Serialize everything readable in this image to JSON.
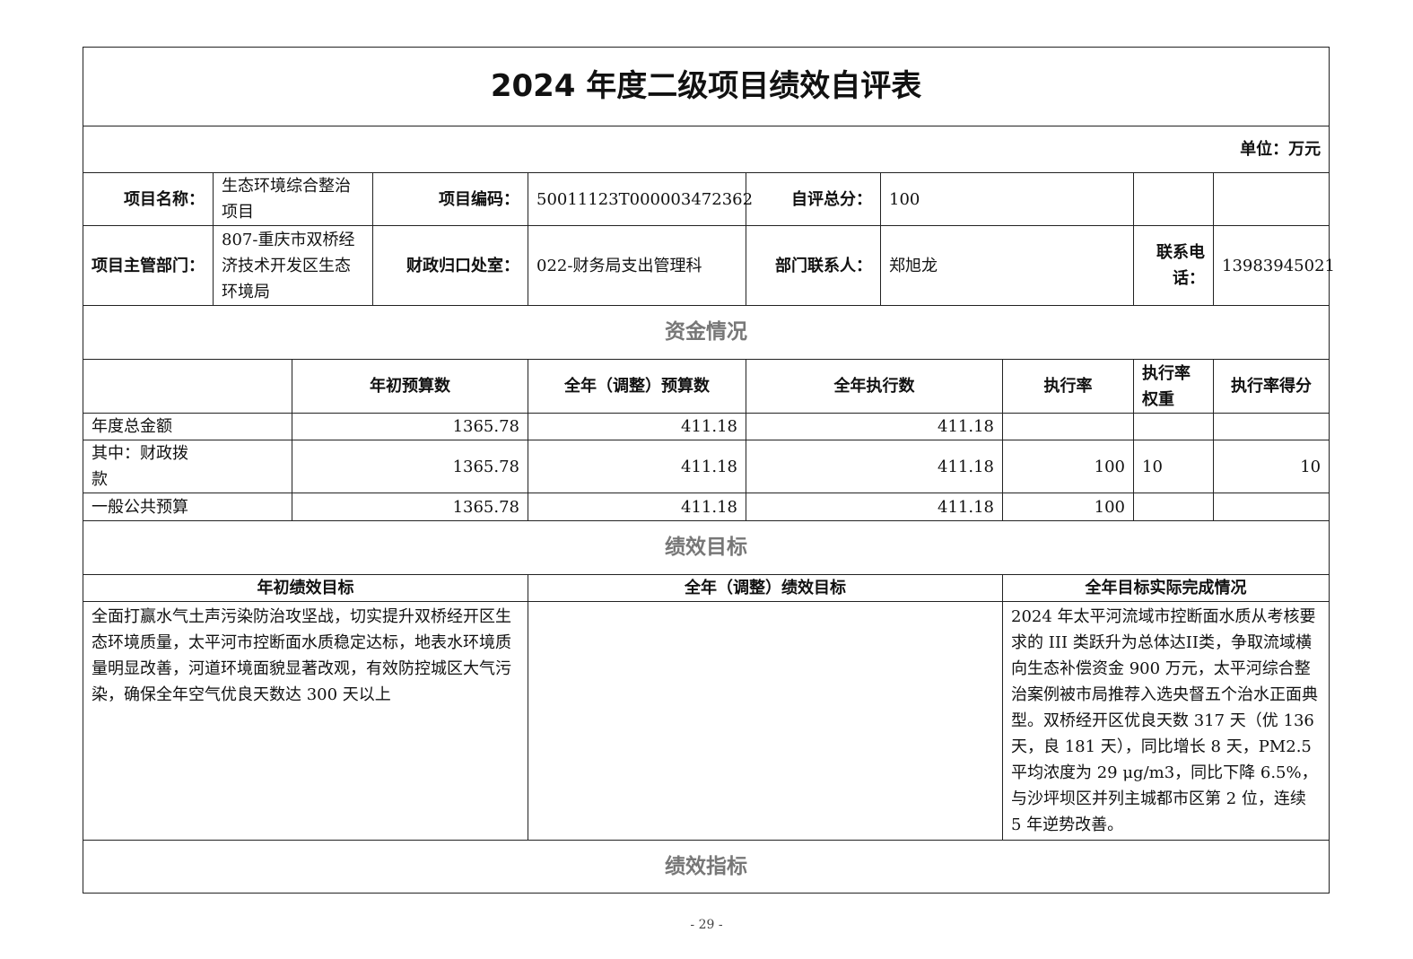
{
  "title": "2024 年度二级项目绩效自评表",
  "unit": "单位：万元",
  "info": {
    "project_name_label": "项目名称：",
    "project_name": "生态环境综合整治项目",
    "project_code_label": "项目编码：",
    "project_code": "50011123T000003472362",
    "score_label": "自评总分：",
    "score": "100",
    "dept_label": "项目主管部门：",
    "dept": "807-重庆市双桥经济技术开发区生态环境局",
    "finance_label": "财政归口处室：",
    "finance": "022-财务局支出管理科",
    "contact_label": "部门联系人：",
    "contact": "郑旭龙",
    "phone_label": "联系电话：",
    "phone": "13983945021"
  },
  "funding": {
    "section": "资金情况",
    "headers": [
      "年初预算数",
      "全年（调整）预算数",
      "全年执行数",
      "执行率",
      "执行率权重",
      "执行率得分"
    ],
    "rows": [
      {
        "label": "年度总金额",
        "initial": "1365.78",
        "adjusted": "411.18",
        "executed": "411.18",
        "rate": "",
        "weight": "",
        "score": ""
      },
      {
        "label": "其中：财政拨款",
        "initial": "1365.78",
        "adjusted": "411.18",
        "executed": "411.18",
        "rate": "100",
        "weight": "10",
        "score": "10"
      },
      {
        "label": "一般公共预算",
        "initial": "1365.78",
        "adjusted": "411.18",
        "executed": "411.18",
        "rate": "100",
        "weight": "",
        "score": ""
      }
    ]
  },
  "goals": {
    "section": "绩效目标",
    "headers": [
      "年初绩效目标",
      "全年（调整）绩效目标",
      "全年目标实际完成情况"
    ],
    "initial": "全面打赢水气土声污染防治攻坚战，切实提升双桥经开区生态环境质量，太平河市控断面水质稳定达标，地表水环境质量明显改善，河道环境面貌显著改观，有效防控城区大气污染，确保全年空气优良天数达 300 天以上",
    "adjusted": "",
    "actual": "2024 年太平河流域市控断面水质从考核要求的 III 类跃升为总体达II类，争取流域横向生态补偿资金 900 万元，太平河综合整治案例被市局推荐入选央督五个治水正面典型。双桥经开区优良天数 317 天（优 136 天，良 181 天），同比增长 8 天，PM2.5 平均浓度为 29 μg/m3，同比下降 6.5%，与沙坪坝区并列主城都市区第 2 位，连续 5 年逆势改善。"
  },
  "indicators": {
    "section": "绩效指标"
  },
  "page_number": "- 29 -"
}
